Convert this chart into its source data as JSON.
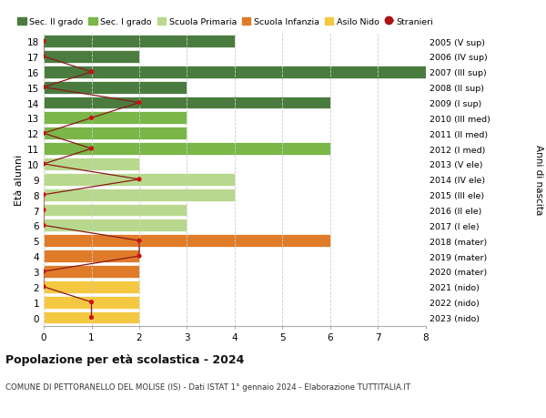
{
  "ages": [
    18,
    17,
    16,
    15,
    14,
    13,
    12,
    11,
    10,
    9,
    8,
    7,
    6,
    5,
    4,
    3,
    2,
    1,
    0
  ],
  "right_labels": [
    "2005 (V sup)",
    "2006 (IV sup)",
    "2007 (III sup)",
    "2008 (II sup)",
    "2009 (I sup)",
    "2010 (III med)",
    "2011 (II med)",
    "2012 (I med)",
    "2013 (V ele)",
    "2014 (IV ele)",
    "2015 (III ele)",
    "2016 (II ele)",
    "2017 (I ele)",
    "2018 (mater)",
    "2019 (mater)",
    "2020 (mater)",
    "2021 (nido)",
    "2022 (nido)",
    "2023 (nido)"
  ],
  "bar_values": [
    4,
    2,
    8,
    3,
    6,
    3,
    3,
    6,
    2,
    4,
    4,
    3,
    3,
    6,
    2,
    2,
    2,
    2,
    2
  ],
  "bar_colors": [
    "#4a7c3f",
    "#4a7c3f",
    "#4a7c3f",
    "#4a7c3f",
    "#4a7c3f",
    "#7ab648",
    "#7ab648",
    "#7ab648",
    "#b8d98d",
    "#b8d98d",
    "#b8d98d",
    "#b8d98d",
    "#b8d98d",
    "#e07b29",
    "#e07b29",
    "#e07b29",
    "#f5c842",
    "#f5c842",
    "#f5c842"
  ],
  "stranieri_values": [
    0,
    0,
    1,
    0,
    2,
    1,
    0,
    1,
    0,
    2,
    0,
    0,
    0,
    2,
    2,
    0,
    0,
    1,
    1
  ],
  "xlim": [
    0,
    8
  ],
  "xlabel_ticks": [
    0,
    1,
    2,
    3,
    4,
    5,
    6,
    7,
    8
  ],
  "ylabel": "Età alunni",
  "right_ylabel": "Anni di nascita",
  "legend_items": [
    {
      "label": "Sec. II grado",
      "color": "#4a7c3f"
    },
    {
      "label": "Sec. I grado",
      "color": "#7ab648"
    },
    {
      "label": "Scuola Primaria",
      "color": "#b8d98d"
    },
    {
      "label": "Scuola Infanzia",
      "color": "#e07b29"
    },
    {
      "label": "Asilo Nido",
      "color": "#f5c842"
    },
    {
      "label": "Stranieri",
      "color": "#aa1111"
    }
  ],
  "title": "Popolazione per età scolastica - 2024",
  "subtitle": "COMUNE DI PETTORANELLO DEL MOLISE (IS) - Dati ISTAT 1° gennaio 2024 - Elaborazione TUTTITALIA.IT",
  "bg_color": "#ffffff",
  "grid_color": "#cccccc",
  "bar_height": 0.82
}
